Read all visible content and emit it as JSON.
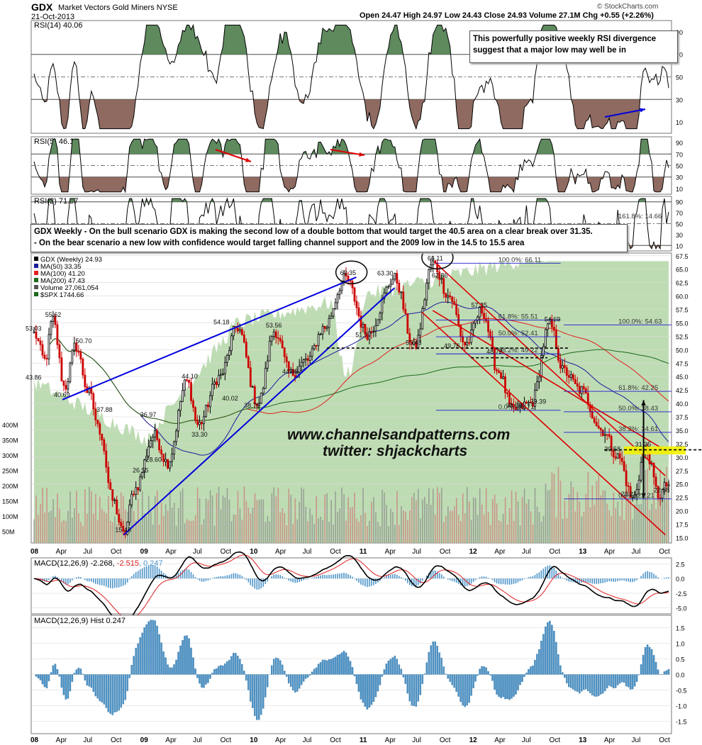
{
  "header": {
    "symbol": "GDX",
    "name": "Market Vectors Gold Miners  NYSE",
    "date": "21-Oct-2013",
    "ohlc": "Open 24.47   High 24.97   Low 24.43   Close 24.93   Volume 27.1M   Chg +0.55 (+2.26%)",
    "brand": "© StockCharts.com"
  },
  "annotations": {
    "rsi_note": [
      "This powerfully positive weekly RSI divergence",
      "suggest that a major low may well be in"
    ],
    "scenario_note": [
      "GDX Weekly - On the bull scenario GDX is making the second low of a double bottom that would target the 40.5 area on a clear break over 31.35.",
      "- On the bear scenario a new low with confidence would target falling channel support and the 2009 low in the 14.5 to 15.5 area"
    ],
    "watermark": [
      "www.channelsandpatterns.com",
      "twitter: shjackcharts"
    ]
  },
  "colors": {
    "price_up": "#000000",
    "price_down": "#cc0000",
    "ma50": "#1a1a9a",
    "ma100": "#e02020",
    "ma200": "#1d6a1d",
    "spx_fill": "#b3d6a6",
    "rsi_line": "#000000",
    "rsi_over": "#5e8a5e",
    "rsi_under": "#8f6a60",
    "macd": "#000000",
    "signal": "#e02020",
    "hist": "#4d94c8",
    "trend_blue": "#0000dd",
    "trend_red": "#dd0000",
    "fib_blue": "#1a1acc",
    "highlight": "#f2f200"
  },
  "chart_data": [
    {
      "type": "line",
      "name": "RSI(14)",
      "legend": "RSI(14) 40.06",
      "last": 40.06,
      "yticks": [
        10,
        30,
        50,
        70,
        90
      ],
      "ylim": [
        0,
        100
      ],
      "levels": [
        30,
        50,
        70
      ]
    },
    {
      "type": "line",
      "name": "RSI(5)",
      "legend": "RSI(5) 46.16",
      "last": 46.16,
      "yticks": [
        10,
        30,
        50,
        70,
        90
      ],
      "ylim": [
        0,
        100
      ],
      "levels": [
        30,
        50,
        70
      ]
    },
    {
      "type": "line",
      "name": "RSI(2)",
      "legend": "RSI(2) 71.37",
      "last": 71.37,
      "yticks": [
        10,
        30,
        50,
        70,
        90
      ],
      "ylim": [
        0,
        100
      ],
      "levels": [
        10,
        50,
        90
      ]
    },
    {
      "type": "candlestick",
      "name": "GDX (Weekly) 24.93",
      "x_labels": [
        "08",
        "Apr",
        "Jul",
        "Oct",
        "09",
        "Apr",
        "Jul",
        "Oct",
        "10",
        "Apr",
        "Jul",
        "Oct",
        "11",
        "Apr",
        "Jul",
        "Oct",
        "12",
        "Apr",
        "Jul",
        "Oct",
        "13",
        "Apr",
        "Jul",
        "Oct"
      ],
      "x_range": [
        "2008-01",
        "2013-10"
      ],
      "yticks": [
        15.0,
        17.5,
        20.0,
        22.5,
        25.0,
        27.5,
        30.0,
        32.5,
        35.0,
        37.5,
        40.0,
        42.5,
        45.0,
        47.5,
        50.0,
        52.5,
        55.0,
        57.5,
        60.0,
        62.5,
        65.0,
        67.5
      ],
      "ylim": [
        14.0,
        68.0
      ],
      "legend": [
        "GDX (Weekly) 24.93",
        "MA(50) 33.35",
        "MA(100) 41.20",
        "MA(200) 47.43",
        "Volume 27,061,054",
        "$SPX 1744.66"
      ],
      "volume_ticks": [
        "400M",
        "350M",
        "300M",
        "250M",
        "200M",
        "150M",
        "100M",
        "50M"
      ],
      "volume_max_millions": 400,
      "anchor_points": [
        {
          "date": "2008.00",
          "value": 53.0
        },
        {
          "date": "2008.10",
          "value": 48.0
        },
        {
          "date": "2008.17",
          "value": 55.6
        },
        {
          "date": "2008.28",
          "value": 43.0
        },
        {
          "date": "2008.38",
          "value": 50.7
        },
        {
          "date": "2008.50",
          "value": 42.0
        },
        {
          "date": "2008.60",
          "value": 35.0
        },
        {
          "date": "2008.72",
          "value": 22.0
        },
        {
          "date": "2008.82",
          "value": 15.5
        },
        {
          "date": "2008.92",
          "value": 24.0
        },
        {
          "date": "2009.10",
          "value": 34.0
        },
        {
          "date": "2009.22",
          "value": 29.0
        },
        {
          "date": "2009.40",
          "value": 44.1
        },
        {
          "date": "2009.50",
          "value": 36.0
        },
        {
          "date": "2009.70",
          "value": 45.0
        },
        {
          "date": "2009.86",
          "value": 54.2
        },
        {
          "date": "2010.05",
          "value": 40.0
        },
        {
          "date": "2010.20",
          "value": 53.5
        },
        {
          "date": "2010.35",
          "value": 45.5
        },
        {
          "date": "2010.50",
          "value": 48.0
        },
        {
          "date": "2010.65",
          "value": 54.0
        },
        {
          "date": "2010.85",
          "value": 63.3
        },
        {
          "date": "2011.05",
          "value": 53.0
        },
        {
          "date": "2011.30",
          "value": 63.3
        },
        {
          "date": "2011.48",
          "value": 50.4
        },
        {
          "date": "2011.65",
          "value": 66.1
        },
        {
          "date": "2011.80",
          "value": 60.0
        },
        {
          "date": "2011.95",
          "value": 51.0
        },
        {
          "date": "2012.10",
          "value": 57.3
        },
        {
          "date": "2012.25",
          "value": 46.0
        },
        {
          "date": "2012.38",
          "value": 38.7
        },
        {
          "date": "2012.55",
          "value": 40.0
        },
        {
          "date": "2012.72",
          "value": 54.7
        },
        {
          "date": "2012.85",
          "value": 46.0
        },
        {
          "date": "2013.00",
          "value": 42.5
        },
        {
          "date": "2013.20",
          "value": 35.0
        },
        {
          "date": "2013.35",
          "value": 30.0
        },
        {
          "date": "2013.48",
          "value": 22.2
        },
        {
          "date": "2013.60",
          "value": 31.4
        },
        {
          "date": "2013.72",
          "value": 22.9
        },
        {
          "date": "2013.80",
          "value": 24.9
        }
      ],
      "point_labels": [
        {
          "label": "53.03",
          "date": "2008.00",
          "value": 53.0
        },
        {
          "label": "55.62",
          "date": "2008.18",
          "value": 55.6
        },
        {
          "label": "50.70",
          "date": "2008.46",
          "value": 50.7
        },
        {
          "label": "43.86",
          "date": "2008.00",
          "value": 43.9
        },
        {
          "label": "40.69",
          "date": "2008.26",
          "value": 40.7
        },
        {
          "label": "37.88",
          "date": "2008.65",
          "value": 37.9
        },
        {
          "label": "15.48",
          "date": "2008.82",
          "value": 15.5
        },
        {
          "label": "26.55",
          "date": "2008.98",
          "value": 26.6
        },
        {
          "label": "28.60",
          "date": "2009.10",
          "value": 28.6
        },
        {
          "label": "36.97",
          "date": "2009.05",
          "value": 37.0
        },
        {
          "label": "33.30",
          "date": "2009.52",
          "value": 33.3
        },
        {
          "label": "44.10",
          "date": "2009.43",
          "value": 44.1
        },
        {
          "label": "40.02",
          "date": "2009.80",
          "value": 40.0
        },
        {
          "label": "38.70",
          "date": "2010.00",
          "value": 38.7
        },
        {
          "label": "54.18",
          "date": "2009.72",
          "value": 54.2
        },
        {
          "label": "44.98",
          "date": "2010.35",
          "value": 45.0
        },
        {
          "label": "53.56",
          "date": "2010.20",
          "value": 53.6
        },
        {
          "label": "51.77",
          "date": "2011.02",
          "value": 51.8
        },
        {
          "label": "63.35",
          "date": "2010.88",
          "value": 63.4
        },
        {
          "label": "63.30",
          "date": "2011.22",
          "value": 63.3
        },
        {
          "label": "50.43",
          "date": "2011.48",
          "value": 50.4
        },
        {
          "label": "66.11",
          "date": "2011.68",
          "value": 66.1
        },
        {
          "label": "62.86",
          "date": "2011.72",
          "value": 62.9
        },
        {
          "label": "49.76",
          "date": "2011.83",
          "value": 49.8
        },
        {
          "label": "57.35",
          "date": "2012.08",
          "value": 57.4
        },
        {
          "label": "48.72",
          "date": "2012.22",
          "value": 48.7
        },
        {
          "label": "38.68",
          "date": "2012.40",
          "value": 38.7
        },
        {
          "label": "39.39",
          "date": "2012.62",
          "value": 39.4
        },
        {
          "label": "54.69",
          "date": "2012.75",
          "value": 54.7
        },
        {
          "label": "30.58",
          "date": "2013.30",
          "value": 30.6
        },
        {
          "label": "31.35",
          "date": "2013.58",
          "value": 31.4
        },
        {
          "label": "22.21",
          "date": "2013.45",
          "value": 22.2
        },
        {
          "label": "22.88",
          "date": "2013.75",
          "value": 22.9
        }
      ],
      "fibonacci_1": [
        {
          "label": "100.0%: 66.11",
          "value": 66.11
        },
        {
          "label": "61.8%: 55.51",
          "value": 55.51
        },
        {
          "label": "50.0%: 52.41",
          "value": 52.41
        },
        {
          "label": "38.2%: 49.22",
          "value": 49.22
        },
        {
          "label": "0.0%: 38.71",
          "value": 38.71
        }
      ],
      "fibonacci_2": [
        {
          "label": "100.0%: 54.63",
          "value": 54.63
        },
        {
          "label": "61.8%: 42.25",
          "value": 42.25
        },
        {
          "label": "50.0%: 38.43",
          "value": 38.43
        },
        {
          "label": "38.2%: 34.61",
          "value": 34.61
        },
        {
          "label": "0.0%: 22.21",
          "value": 22.21
        }
      ],
      "fib_overflow": "161.8%: 14.66",
      "support_levels": [
        50.3,
        31.35
      ],
      "target_levels": [
        40.5,
        22.21
      ]
    },
    {
      "type": "line",
      "name": "MACD(12,26,9)",
      "legend_parts": [
        "MACD(12,26,9) -2.268, ",
        "-2.515",
        ", 0.247"
      ],
      "yticks": [
        "2.5",
        "0.0",
        "-2.5",
        "-5.0"
      ],
      "ylim": [
        -6.0,
        3.5
      ]
    },
    {
      "type": "bar",
      "name": "MACD(12,26,9) Hist",
      "legend": "MACD(12,26,9) Hist 0.247",
      "last": 0.247,
      "yticks": [
        "1.5",
        "1.0",
        "0.5",
        "0.0",
        "-0.5",
        "-1.0",
        "-1.5"
      ],
      "ylim": [
        -1.9,
        1.9
      ]
    }
  ]
}
